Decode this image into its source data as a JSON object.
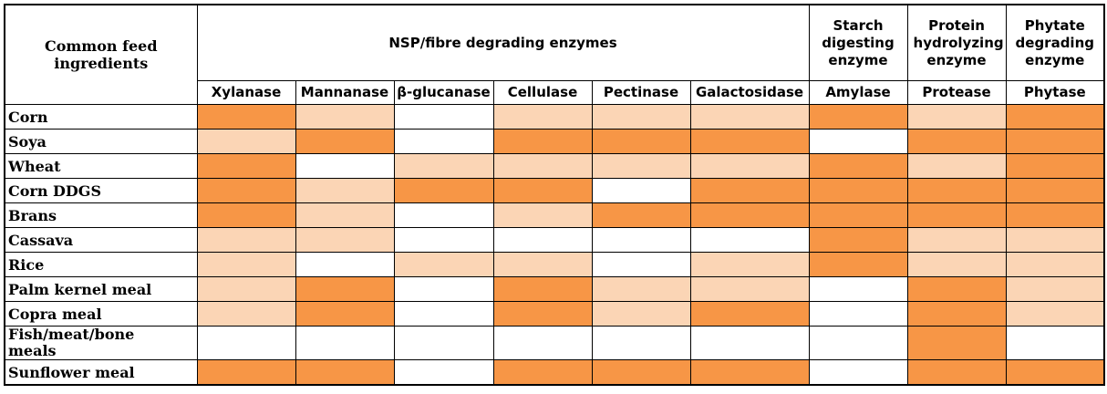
{
  "header": {
    "first_column": "Common feed ingredients",
    "groups": [
      "NSP/fibre degrading enzymes",
      "Starch digesting enzyme",
      "Protein hydrolyzing enzyme",
      "Phytate degrading enzyme"
    ],
    "enzymes": [
      "Xylanase",
      "Mannanase",
      "β-glucanase",
      "Cellulase",
      "Pectinase",
      "Galactosidase",
      "Amylase",
      "Protease",
      "Phytase"
    ]
  },
  "rows": [
    {
      "label": "Corn",
      "colors": [
        "#f79646",
        "#fbd5b5",
        "#ffffff",
        "#fbd5b5",
        "#fbd5b5",
        "#fbd5b5",
        "#f79646",
        "#fbd5b5",
        "#f79646"
      ]
    },
    {
      "label": "Soya",
      "colors": [
        "#fbd5b5",
        "#f79646",
        "#ffffff",
        "#f79646",
        "#f79646",
        "#f79646",
        "#ffffff",
        "#f79646",
        "#f79646"
      ]
    },
    {
      "label": "Wheat",
      "colors": [
        "#f79646",
        "#ffffff",
        "#fbd5b5",
        "#fbd5b5",
        "#fbd5b5",
        "#fbd5b5",
        "#f79646",
        "#fbd5b5",
        "#f79646"
      ]
    },
    {
      "label": "Corn DDGS",
      "colors": [
        "#f79646",
        "#fbd5b5",
        "#f79646",
        "#f79646",
        "#ffffff",
        "#f79646",
        "#f79646",
        "#f79646",
        "#f79646"
      ]
    },
    {
      "label": "Brans",
      "colors": [
        "#f79646",
        "#fbd5b5",
        "#ffffff",
        "#fbd5b5",
        "#f79646",
        "#f79646",
        "#f79646",
        "#f79646",
        "#f79646"
      ]
    },
    {
      "label": "Cassava",
      "colors": [
        "#fbd5b5",
        "#fbd5b5",
        "#ffffff",
        "#ffffff",
        "#ffffff",
        "#ffffff",
        "#f79646",
        "#fbd5b5",
        "#fbd5b5"
      ]
    },
    {
      "label": "Rice",
      "colors": [
        "#fbd5b5",
        "#ffffff",
        "#fbd5b5",
        "#fbd5b5",
        "#ffffff",
        "#fbd5b5",
        "#f79646",
        "#fbd5b5",
        "#fbd5b5"
      ]
    },
    {
      "label": "Palm kernel meal",
      "colors": [
        "#fbd5b5",
        "#f79646",
        "#ffffff",
        "#f79646",
        "#fbd5b5",
        "#fbd5b5",
        "#ffffff",
        "#f79646",
        "#fbd5b5"
      ]
    },
    {
      "label": "Copra meal",
      "colors": [
        "#fbd5b5",
        "#f79646",
        "#ffffff",
        "#f79646",
        "#fbd5b5",
        "#f79646",
        "#ffffff",
        "#f79646",
        "#fbd5b5"
      ]
    },
    {
      "label": "Fish/meat/bone meals",
      "colors": [
        "#ffffff",
        "#ffffff",
        "#ffffff",
        "#ffffff",
        "#ffffff",
        "#ffffff",
        "#ffffff",
        "#f79646",
        "#ffffff"
      ]
    },
    {
      "label": "Sunflower meal",
      "colors": [
        "#f79646",
        "#f79646",
        "#ffffff",
        "#f79646",
        "#f79646",
        "#f79646",
        "#ffffff",
        "#f79646",
        "#f79646"
      ]
    }
  ]
}
